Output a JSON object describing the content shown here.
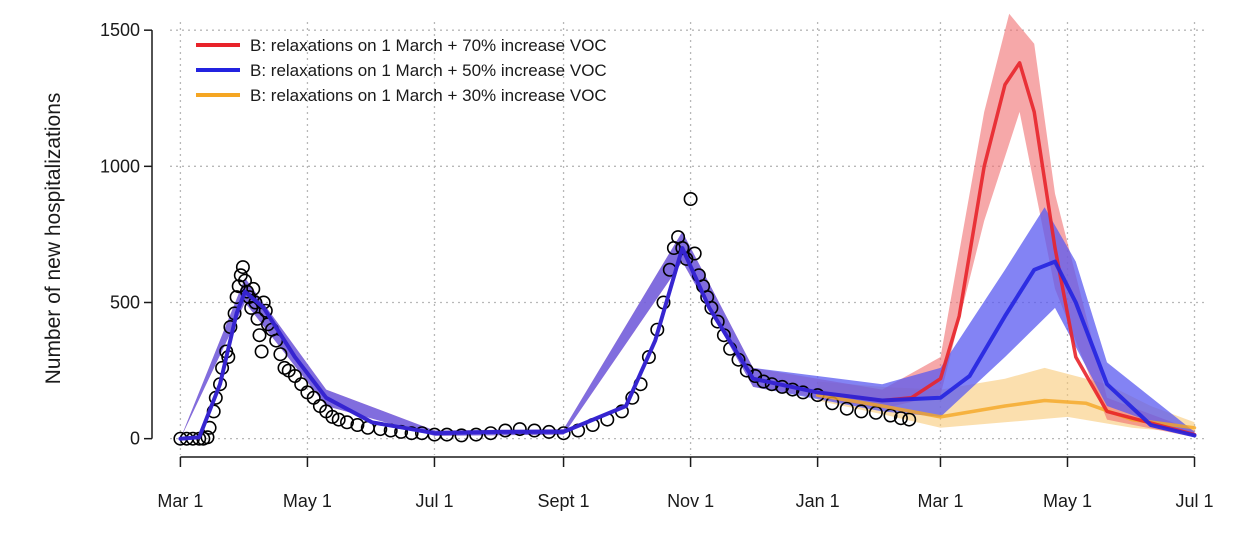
{
  "chart_data": {
    "type": "line",
    "title": "",
    "xlabel": "",
    "ylabel": "Number of new hospitalizations",
    "x_tick_labels": [
      "Mar 1",
      "May 1",
      "Jul 1",
      "Sept 1",
      "Nov 1",
      "Jan 1",
      "Mar 1",
      "May 1",
      "Jul 1"
    ],
    "x_tick_dates": [
      "2020-03-01",
      "2020-05-01",
      "2020-07-01",
      "2020-09-01",
      "2020-11-01",
      "2021-01-01",
      "2021-03-01",
      "2021-05-01",
      "2021-07-01"
    ],
    "y_ticks": [
      0,
      500,
      1000,
      1500
    ],
    "y_tick_labels": [
      "0",
      "500",
      "1000",
      "1500"
    ],
    "ylim": [
      -60,
      1530
    ],
    "xlim": [
      "2020-02-25",
      "2021-07-07"
    ],
    "grid": true,
    "legend_position": "top-left",
    "observed_hospitalizations": [
      [
        "2020-03-01",
        0
      ],
      [
        "2020-03-04",
        0
      ],
      [
        "2020-03-07",
        0
      ],
      [
        "2020-03-10",
        0
      ],
      [
        "2020-03-12",
        0
      ],
      [
        "2020-03-14",
        5
      ],
      [
        "2020-03-15",
        40
      ],
      [
        "2020-03-17",
        100
      ],
      [
        "2020-03-18",
        150
      ],
      [
        "2020-03-20",
        200
      ],
      [
        "2020-03-21",
        260
      ],
      [
        "2020-03-23",
        320
      ],
      [
        "2020-03-24",
        300
      ],
      [
        "2020-03-25",
        410
      ],
      [
        "2020-03-27",
        460
      ],
      [
        "2020-03-28",
        520
      ],
      [
        "2020-03-29",
        560
      ],
      [
        "2020-03-30",
        600
      ],
      [
        "2020-03-31",
        630
      ],
      [
        "2020-04-01",
        580
      ],
      [
        "2020-04-02",
        540
      ],
      [
        "2020-04-03",
        520
      ],
      [
        "2020-04-04",
        480
      ],
      [
        "2020-04-05",
        550
      ],
      [
        "2020-04-06",
        500
      ],
      [
        "2020-04-07",
        440
      ],
      [
        "2020-04-08",
        380
      ],
      [
        "2020-04-09",
        320
      ],
      [
        "2020-04-10",
        500
      ],
      [
        "2020-04-11",
        470
      ],
      [
        "2020-04-12",
        420
      ],
      [
        "2020-04-14",
        400
      ],
      [
        "2020-04-16",
        360
      ],
      [
        "2020-04-18",
        310
      ],
      [
        "2020-04-20",
        260
      ],
      [
        "2020-04-22",
        250
      ],
      [
        "2020-04-25",
        230
      ],
      [
        "2020-04-28",
        200
      ],
      [
        "2020-05-01",
        170
      ],
      [
        "2020-05-04",
        150
      ],
      [
        "2020-05-07",
        120
      ],
      [
        "2020-05-10",
        100
      ],
      [
        "2020-05-13",
        80
      ],
      [
        "2020-05-16",
        70
      ],
      [
        "2020-05-20",
        60
      ],
      [
        "2020-05-25",
        50
      ],
      [
        "2020-05-30",
        40
      ],
      [
        "2020-06-05",
        35
      ],
      [
        "2020-06-10",
        30
      ],
      [
        "2020-06-15",
        25
      ],
      [
        "2020-06-20",
        20
      ],
      [
        "2020-06-25",
        20
      ],
      [
        "2020-07-01",
        15
      ],
      [
        "2020-07-07",
        15
      ],
      [
        "2020-07-14",
        12
      ],
      [
        "2020-07-21",
        15
      ],
      [
        "2020-07-28",
        20
      ],
      [
        "2020-08-04",
        30
      ],
      [
        "2020-08-11",
        35
      ],
      [
        "2020-08-18",
        30
      ],
      [
        "2020-08-25",
        25
      ],
      [
        "2020-09-01",
        20
      ],
      [
        "2020-09-08",
        30
      ],
      [
        "2020-09-15",
        50
      ],
      [
        "2020-09-22",
        70
      ],
      [
        "2020-09-29",
        100
      ],
      [
        "2020-10-04",
        150
      ],
      [
        "2020-10-08",
        200
      ],
      [
        "2020-10-12",
        300
      ],
      [
        "2020-10-16",
        400
      ],
      [
        "2020-10-19",
        500
      ],
      [
        "2020-10-22",
        620
      ],
      [
        "2020-10-24",
        700
      ],
      [
        "2020-10-26",
        740
      ],
      [
        "2020-10-28",
        700
      ],
      [
        "2020-10-30",
        660
      ],
      [
        "2020-11-01",
        880
      ],
      [
        "2020-11-03",
        680
      ],
      [
        "2020-11-05",
        600
      ],
      [
        "2020-11-07",
        560
      ],
      [
        "2020-11-09",
        520
      ],
      [
        "2020-11-11",
        480
      ],
      [
        "2020-11-14",
        430
      ],
      [
        "2020-11-17",
        380
      ],
      [
        "2020-11-20",
        330
      ],
      [
        "2020-11-24",
        290
      ],
      [
        "2020-11-28",
        250
      ],
      [
        "2020-12-02",
        230
      ],
      [
        "2020-12-06",
        210
      ],
      [
        "2020-12-10",
        200
      ],
      [
        "2020-12-15",
        190
      ],
      [
        "2020-12-20",
        180
      ],
      [
        "2020-12-25",
        170
      ],
      [
        "2021-01-01",
        160
      ],
      [
        "2021-01-08",
        130
      ],
      [
        "2021-01-15",
        110
      ],
      [
        "2021-01-22",
        100
      ],
      [
        "2021-01-29",
        95
      ],
      [
        "2021-02-05",
        85
      ],
      [
        "2021-02-10",
        75
      ],
      [
        "2021-02-14",
        70
      ]
    ],
    "series": [
      {
        "name": "B: relaxations on 1 March + 70% increase VOC",
        "color": "#e8232a",
        "band_color": "#f06e70",
        "points": [
          [
            "2020-03-01",
            0
          ],
          [
            "2020-03-10",
            5
          ],
          [
            "2020-03-20",
            200
          ],
          [
            "2020-03-28",
            460
          ],
          [
            "2020-04-01",
            540
          ],
          [
            "2020-04-10",
            480
          ],
          [
            "2020-04-25",
            300
          ],
          [
            "2020-05-10",
            150
          ],
          [
            "2020-06-01",
            60
          ],
          [
            "2020-07-01",
            20
          ],
          [
            "2020-08-01",
            25
          ],
          [
            "2020-09-01",
            25
          ],
          [
            "2020-10-01",
            120
          ],
          [
            "2020-10-15",
            360
          ],
          [
            "2020-10-28",
            700
          ],
          [
            "2020-11-10",
            480
          ],
          [
            "2020-12-01",
            220
          ],
          [
            "2021-01-01",
            170
          ],
          [
            "2021-02-01",
            140
          ],
          [
            "2021-02-15",
            150
          ],
          [
            "2021-03-01",
            220
          ],
          [
            "2021-03-10",
            450
          ],
          [
            "2021-03-22",
            1000
          ],
          [
            "2021-04-01",
            1300
          ],
          [
            "2021-04-08",
            1380
          ],
          [
            "2021-04-15",
            1200
          ],
          [
            "2021-04-25",
            700
          ],
          [
            "2021-05-05",
            300
          ],
          [
            "2021-05-20",
            100
          ],
          [
            "2021-07-01",
            15
          ]
        ],
        "lower": [
          [
            "2020-03-01",
            0
          ],
          [
            "2020-04-01",
            500
          ],
          [
            "2020-05-10",
            120
          ],
          [
            "2020-07-01",
            10
          ],
          [
            "2020-09-01",
            15
          ],
          [
            "2020-10-28",
            650
          ],
          [
            "2020-12-01",
            190
          ],
          [
            "2021-02-01",
            110
          ],
          [
            "2021-03-01",
            160
          ],
          [
            "2021-03-22",
            800
          ],
          [
            "2021-04-08",
            1200
          ],
          [
            "2021-04-25",
            550
          ],
          [
            "2021-05-20",
            70
          ],
          [
            "2021-07-01",
            5
          ]
        ],
        "upper": [
          [
            "2020-03-01",
            0
          ],
          [
            "2020-04-01",
            590
          ],
          [
            "2020-05-10",
            180
          ],
          [
            "2020-07-01",
            30
          ],
          [
            "2020-09-01",
            35
          ],
          [
            "2020-10-28",
            760
          ],
          [
            "2020-12-01",
            260
          ],
          [
            "2021-02-01",
            180
          ],
          [
            "2021-03-01",
            300
          ],
          [
            "2021-03-22",
            1200
          ],
          [
            "2021-04-03",
            1560
          ],
          [
            "2021-04-15",
            1450
          ],
          [
            "2021-04-25",
            900
          ],
          [
            "2021-05-20",
            150
          ],
          [
            "2021-07-01",
            30
          ]
        ]
      },
      {
        "name": "B: relaxations on 1 March + 50% increase VOC",
        "color": "#2323e0",
        "band_color": "#5a5af0",
        "points": [
          [
            "2020-03-01",
            0
          ],
          [
            "2020-03-10",
            5
          ],
          [
            "2020-03-20",
            200
          ],
          [
            "2020-03-28",
            460
          ],
          [
            "2020-04-01",
            540
          ],
          [
            "2020-04-10",
            480
          ],
          [
            "2020-04-25",
            300
          ],
          [
            "2020-05-10",
            150
          ],
          [
            "2020-06-01",
            60
          ],
          [
            "2020-07-01",
            20
          ],
          [
            "2020-08-01",
            25
          ],
          [
            "2020-09-01",
            25
          ],
          [
            "2020-10-01",
            120
          ],
          [
            "2020-10-15",
            360
          ],
          [
            "2020-10-28",
            700
          ],
          [
            "2020-11-10",
            480
          ],
          [
            "2020-12-01",
            220
          ],
          [
            "2021-01-01",
            170
          ],
          [
            "2021-02-01",
            140
          ],
          [
            "2021-03-01",
            150
          ],
          [
            "2021-03-15",
            230
          ],
          [
            "2021-04-01",
            450
          ],
          [
            "2021-04-15",
            620
          ],
          [
            "2021-04-25",
            650
          ],
          [
            "2021-05-05",
            500
          ],
          [
            "2021-05-20",
            200
          ],
          [
            "2021-06-10",
            50
          ],
          [
            "2021-07-01",
            12
          ]
        ],
        "lower": [
          [
            "2020-03-01",
            0
          ],
          [
            "2020-04-01",
            500
          ],
          [
            "2020-05-10",
            120
          ],
          [
            "2020-07-01",
            10
          ],
          [
            "2020-09-01",
            15
          ],
          [
            "2020-10-28",
            650
          ],
          [
            "2020-12-01",
            190
          ],
          [
            "2021-02-01",
            100
          ],
          [
            "2021-03-01",
            80
          ],
          [
            "2021-04-01",
            300
          ],
          [
            "2021-04-25",
            480
          ],
          [
            "2021-05-20",
            120
          ],
          [
            "2021-07-01",
            5
          ]
        ],
        "upper": [
          [
            "2020-03-01",
            0
          ],
          [
            "2020-04-01",
            590
          ],
          [
            "2020-05-10",
            180
          ],
          [
            "2020-07-01",
            30
          ],
          [
            "2020-09-01",
            35
          ],
          [
            "2020-10-28",
            760
          ],
          [
            "2020-12-01",
            260
          ],
          [
            "2021-02-01",
            200
          ],
          [
            "2021-03-01",
            260
          ],
          [
            "2021-04-01",
            620
          ],
          [
            "2021-04-20",
            850
          ],
          [
            "2021-05-05",
            650
          ],
          [
            "2021-05-20",
            280
          ],
          [
            "2021-07-01",
            25
          ]
        ]
      },
      {
        "name": "B: relaxations on 1 March + 30% increase VOC",
        "color": "#f5a623",
        "band_color": "#f8c978",
        "points": [
          [
            "2021-01-01",
            160
          ],
          [
            "2021-02-01",
            120
          ],
          [
            "2021-03-01",
            80
          ],
          [
            "2021-04-01",
            120
          ],
          [
            "2021-04-20",
            140
          ],
          [
            "2021-05-10",
            130
          ],
          [
            "2021-06-01",
            70
          ],
          [
            "2021-07-01",
            40
          ]
        ],
        "lower": [
          [
            "2021-01-01",
            140
          ],
          [
            "2021-02-01",
            90
          ],
          [
            "2021-03-01",
            40
          ],
          [
            "2021-04-01",
            60
          ],
          [
            "2021-05-01",
            80
          ],
          [
            "2021-06-01",
            40
          ],
          [
            "2021-07-01",
            20
          ]
        ],
        "upper": [
          [
            "2021-01-01",
            210
          ],
          [
            "2021-02-01",
            190
          ],
          [
            "2021-03-01",
            180
          ],
          [
            "2021-04-01",
            220
          ],
          [
            "2021-04-20",
            260
          ],
          [
            "2021-05-20",
            200
          ],
          [
            "2021-06-10",
            120
          ],
          [
            "2021-07-01",
            60
          ]
        ]
      }
    ]
  }
}
